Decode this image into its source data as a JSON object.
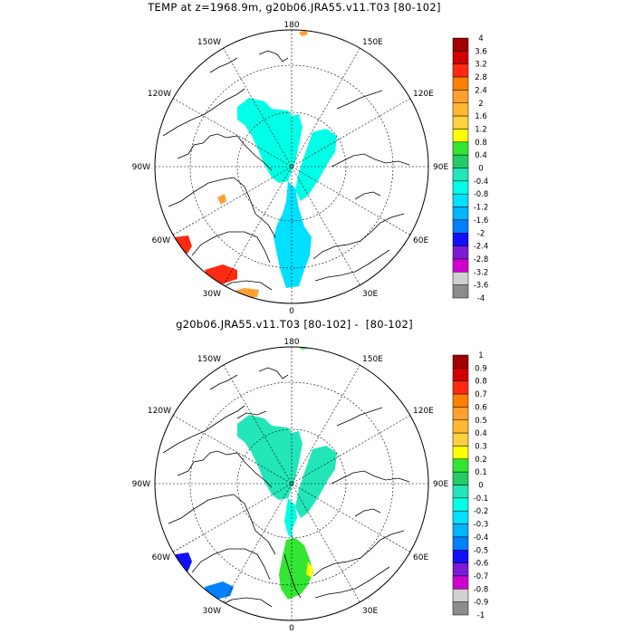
{
  "panels": [
    {
      "title": "TEMP at z=1968.9m, g20b06.JRA55.v11.T03 [80-102]",
      "lon_labels": {
        "top": "180",
        "bottom": "0",
        "left": "90W",
        "right": "90E",
        "tl": "150W",
        "tr": "150E",
        "ul": "120W",
        "ur": "120E",
        "ll": "60W",
        "lr": "60E",
        "bl": "30W",
        "br": "30E"
      },
      "colorbar": {
        "labels": [
          "4",
          "3.6",
          "3.2",
          "2.8",
          "2.4",
          "2",
          "1.6",
          "1.2",
          "0.8",
          "0.4",
          "0",
          "-0.4",
          "-0.8",
          "-1.2",
          "-1.6",
          "-2",
          "-2.4",
          "-2.8",
          "-3.2",
          "-3.6",
          "-4"
        ],
        "colors": [
          "#a00000",
          "#d00000",
          "#ff2a10",
          "#ff7f00",
          "#ffa030",
          "#ffb830",
          "#ffd040",
          "#ffff00",
          "#33e633",
          "#22cc66",
          "#22e6b8",
          "#00ffe6",
          "#00e0ff",
          "#00b4ff",
          "#0080ff",
          "#1010ff",
          "#7c1ad6",
          "#d000d0",
          "#d0d0d0",
          "#8c8c8c"
        ]
      }
    },
    {
      "title": "g20b06.JRA55.v11.T03 [80-102] -  [80-102]",
      "lon_labels": {
        "top": "180",
        "bottom": "0",
        "left": "90W",
        "right": "90E",
        "tl": "150W",
        "tr": "150E",
        "ul": "120W",
        "ur": "120E",
        "ll": "60W",
        "lr": "60E",
        "bl": "30W",
        "br": "30E"
      },
      "colorbar": {
        "labels": [
          "1",
          "0.9",
          "0.8",
          "0.7",
          "0.6",
          "0.5",
          "0.4",
          "0.3",
          "0.2",
          "0.1",
          "0",
          "-0.1",
          "-0.2",
          "-0.3",
          "-0.4",
          "-0.5",
          "-0.6",
          "-0.7",
          "-0.8",
          "-0.9",
          "-1"
        ],
        "colors": [
          "#a00000",
          "#d00000",
          "#ff2a10",
          "#ff7f00",
          "#ffa030",
          "#ffb830",
          "#ffd040",
          "#ffff00",
          "#33e633",
          "#22cc66",
          "#22e6b8",
          "#00ffe6",
          "#00e0ff",
          "#00b4ff",
          "#0080ff",
          "#1010ff",
          "#7c1ad6",
          "#d000d0",
          "#d0d0d0",
          "#8c8c8c"
        ]
      }
    }
  ]
}
